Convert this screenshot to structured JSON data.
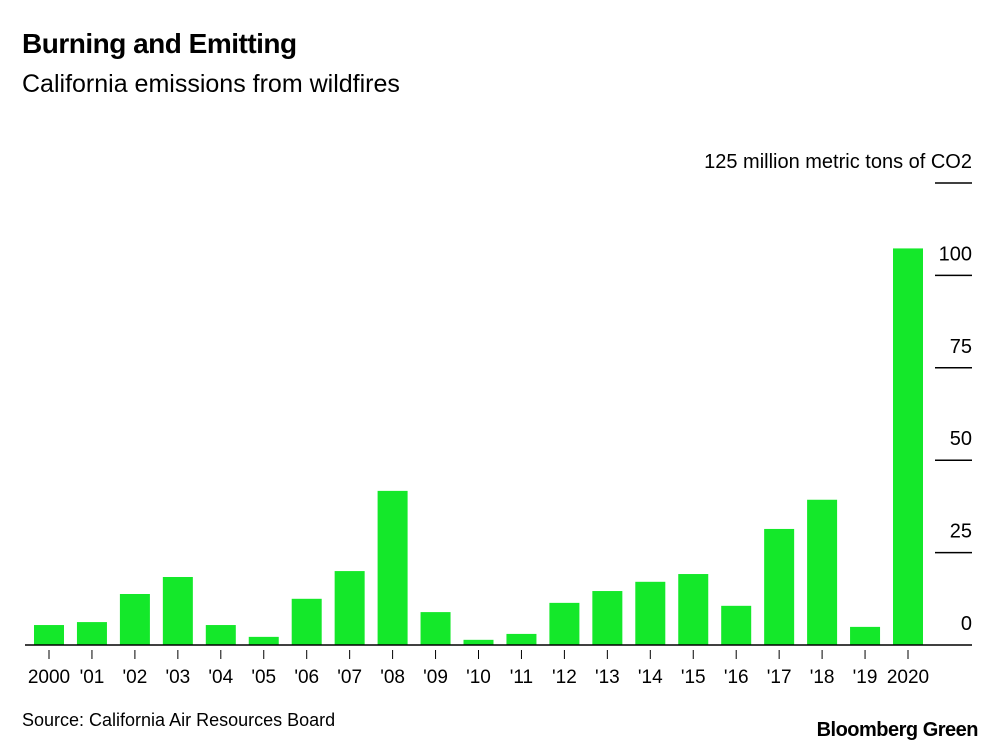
{
  "title": "Burning and Emitting",
  "subtitle": "California emissions from wildfires",
  "source": "Source: California Air Resources Board",
  "brand": "Bloomberg Green",
  "chart_data": {
    "type": "bar",
    "title": "Burning and Emitting",
    "subtitle": "California emissions from wildfires",
    "ylabel": "125 million metric tons of CO2",
    "ylim": [
      0,
      125
    ],
    "yticks": [
      0,
      25,
      50,
      75,
      100,
      125
    ],
    "ytick_labels": [
      "0",
      "25",
      "50",
      "75",
      "100",
      "125 million metric tons of CO2"
    ],
    "categories": [
      "2000",
      "'01",
      "'02",
      "'03",
      "'04",
      "'05",
      "'06",
      "'07",
      "'08",
      "'09",
      "'10",
      "'11",
      "'12",
      "'13",
      "'14",
      "'15",
      "'16",
      "'17",
      "'18",
      "'19",
      "2020"
    ],
    "values": [
      5.4,
      6.2,
      13.8,
      18.4,
      5.4,
      2.2,
      12.5,
      20.0,
      41.7,
      8.9,
      1.4,
      3.0,
      11.4,
      14.6,
      17.1,
      19.2,
      10.6,
      31.4,
      39.3,
      4.9,
      107.3
    ],
    "bar_color": "#14e82a",
    "grid": false,
    "yaxis_position": "right"
  }
}
